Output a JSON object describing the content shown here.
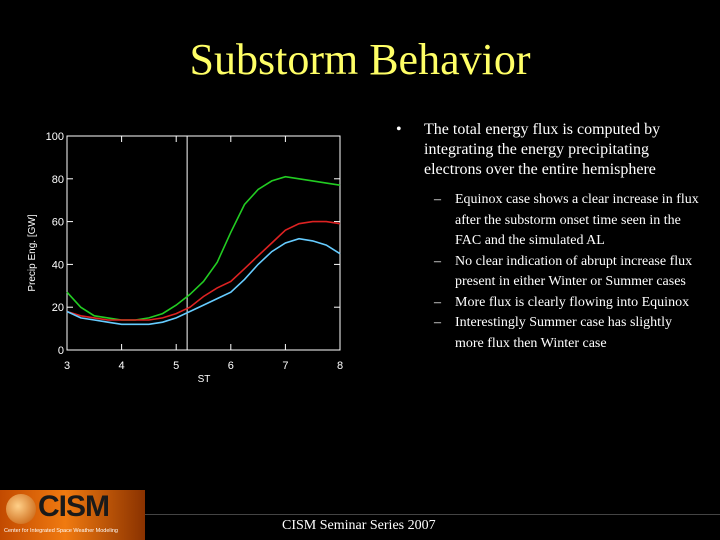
{
  "title": "Substorm Behavior",
  "bullet": "The total energy flux is computed by integrating the energy precipitating electrons over the entire hemisphere",
  "sub_bullets": [
    "Equinox case shows a clear increase in flux after  the substorm onset time seen in the FAC and the simulated AL",
    "No clear indication of abrupt increase flux present in either Winter or Summer cases",
    "More flux is clearly flowing into Equinox",
    "Interestingly Summer case has slightly more flux then Winter case"
  ],
  "footer": "CISM Seminar Series 2007",
  "logo": {
    "name": "CISM",
    "tagline": "Center for Integrated Space Weather Modeling"
  },
  "chart_data": {
    "type": "line",
    "xlabel": "ST",
    "ylabel": "Precip Eng. [GW]",
    "xlim": [
      3,
      8
    ],
    "ylim": [
      0,
      100
    ],
    "xticks": [
      3,
      4,
      5,
      6,
      7,
      8
    ],
    "yticks": [
      0,
      20,
      40,
      60,
      80,
      100
    ],
    "onset_x": 5.2,
    "series": [
      {
        "color": "#22cc22",
        "x": [
          3,
          3.25,
          3.5,
          3.75,
          4,
          4.25,
          4.5,
          4.75,
          5,
          5.25,
          5.5,
          5.75,
          6,
          6.25,
          6.5,
          6.75,
          7,
          7.25,
          7.5,
          7.75,
          8
        ],
        "y": [
          27,
          20,
          16,
          15,
          14,
          14,
          15,
          17,
          21,
          26,
          32,
          41,
          55,
          68,
          75,
          79,
          81,
          80,
          79,
          78,
          77
        ]
      },
      {
        "color": "#dd2222",
        "x": [
          3,
          3.25,
          3.5,
          3.75,
          4,
          4.25,
          4.5,
          4.75,
          5,
          5.25,
          5.5,
          5.75,
          6,
          6.25,
          6.5,
          6.75,
          7,
          7.25,
          7.5,
          7.75,
          8
        ],
        "y": [
          18,
          16,
          15,
          14,
          14,
          14,
          14,
          15,
          17,
          20,
          25,
          29,
          32,
          38,
          44,
          50,
          56,
          59,
          60,
          60,
          59
        ]
      },
      {
        "color": "#66ccff",
        "x": [
          3,
          3.25,
          3.5,
          3.75,
          4,
          4.25,
          4.5,
          4.75,
          5,
          5.25,
          5.5,
          5.75,
          6,
          6.25,
          6.5,
          6.75,
          7,
          7.25,
          7.5,
          7.75,
          8
        ],
        "y": [
          18,
          15,
          14,
          13,
          12,
          12,
          12,
          13,
          15,
          18,
          21,
          24,
          27,
          33,
          40,
          46,
          50,
          52,
          51,
          49,
          45
        ]
      }
    ]
  }
}
